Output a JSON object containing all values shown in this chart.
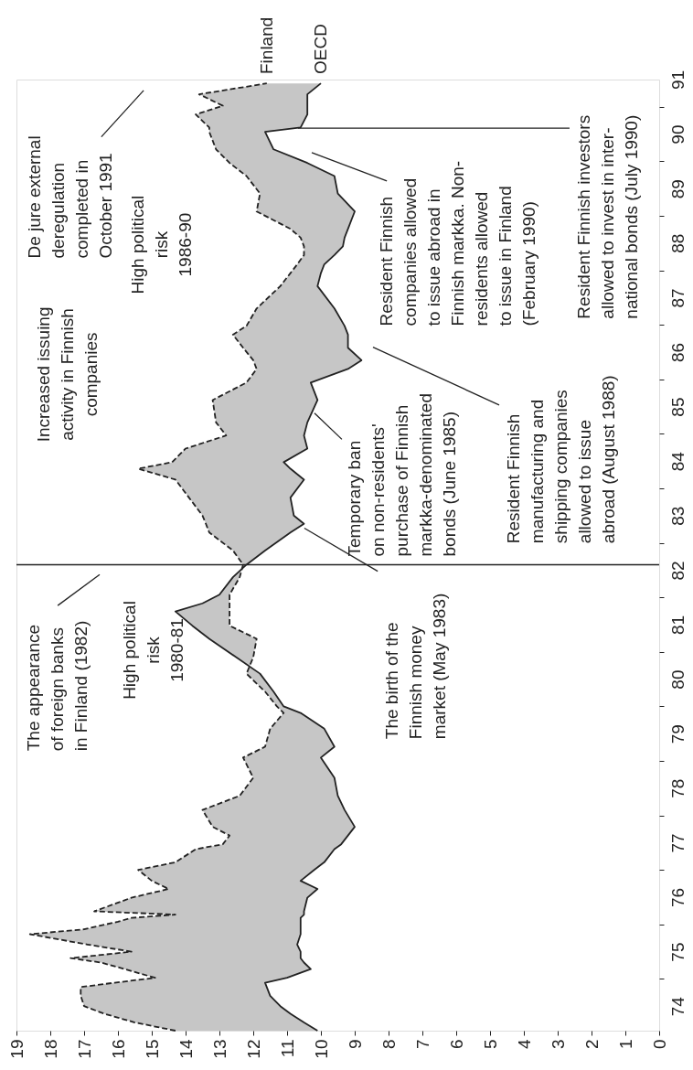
{
  "chart_data": {
    "type": "line",
    "orientation": "horizontal",
    "x": [
      74.05,
      74.2,
      74.36,
      74.5,
      74.69,
      74.85,
      74.93,
      75.02,
      75.18,
      75.3,
      75.38,
      75.5,
      75.63,
      75.82,
      75.91,
      76.05,
      76.12,
      76.18,
      76.24,
      76.49,
      76.65,
      76.8,
      77.0,
      77.14,
      77.38,
      77.47,
      77.63,
      77.79,
      78.1,
      78.36,
      78.69,
      79.06,
      79.26,
      79.59,
      79.88,
      80.0,
      80.27,
      80.6,
      80.9,
      81.24,
      81.48,
      81.74,
      81.89,
      82.05,
      82.37,
      82.6,
      82.86,
      83.19,
      83.35,
      83.5,
      83.83,
      84.16,
      84.36,
      84.48,
      84.73,
      84.97,
      85.21,
      85.62,
      85.94,
      86.19,
      86.35,
      86.58,
      86.82,
      86.98,
      87.3,
      87.71,
      87.95,
      88.11,
      88.28,
      88.44,
      88.6,
      88.76,
      88.92,
      89.08,
      89.41,
      89.73,
      89.97,
      90.22,
      90.54,
      90.62,
      90.86,
      91.02,
      91.23,
      91.43
    ],
    "series": [
      {
        "name": "Finland",
        "color": "#222222",
        "line_style": "dashed",
        "values": [
          14.3,
          15.5,
          16.4,
          17.0,
          17.1,
          17.1,
          16.1,
          14.9,
          15.8,
          16.5,
          17.4,
          15.6,
          16.9,
          18.6,
          17.0,
          16.0,
          15.6,
          14.3,
          16.7,
          15.6,
          14.5,
          15.0,
          15.4,
          14.3,
          13.7,
          12.9,
          12.7,
          13.2,
          13.5,
          12.4,
          12.0,
          12.3,
          11.65,
          11.5,
          11.1,
          11.3,
          11.65,
          12.2,
          12.0,
          11.9,
          12.7,
          12.7,
          12.7,
          12.7,
          12.4,
          12.3,
          12.6,
          13.3,
          13.4,
          13.5,
          13.9,
          14.3,
          15.4,
          14.4,
          14.0,
          12.8,
          13.1,
          13.2,
          12.2,
          11.9,
          12.0,
          12.3,
          12.6,
          12.2,
          11.9,
          11.2,
          10.9,
          10.7,
          10.5,
          10.5,
          10.6,
          10.9,
          11.4,
          11.9,
          11.8,
          12.2,
          12.7,
          13.1,
          13.3,
          13.3,
          13.7,
          12.9,
          13.6,
          11.6
        ],
        "upper": [
          14.3,
          15.5,
          16.4,
          17.0,
          17.1,
          17.1,
          16.1,
          14.9,
          15.8,
          16.5,
          17.4,
          15.6,
          16.9,
          18.6,
          17.0,
          16.0,
          15.6,
          14.3,
          16.7,
          15.6,
          14.5,
          15.0,
          15.4,
          14.3,
          13.7,
          12.9,
          12.7,
          13.2,
          13.5,
          12.4,
          12.0,
          12.3,
          11.65,
          11.5,
          11.1,
          11.3,
          11.65,
          12.2,
          12.0,
          11.9,
          12.7,
          12.7,
          12.7,
          12.7,
          12.4,
          12.3,
          12.6,
          13.3,
          13.4,
          13.5,
          13.9,
          14.3,
          15.4,
          14.4,
          14.0,
          12.8,
          13.1,
          13.2,
          12.2,
          11.9,
          12.0,
          12.3,
          12.6,
          12.2,
          11.9,
          11.2,
          10.9,
          10.7,
          10.5,
          10.5,
          10.6,
          10.9,
          11.4,
          11.9,
          11.8,
          12.2,
          12.7,
          13.1,
          13.3,
          13.3,
          13.7,
          12.9,
          13.6,
          11.6
        ],
        "lower": [
          10.1,
          10.5,
          10.9,
          11.2,
          11.5,
          11.6,
          11.65,
          11.0,
          10.3,
          10.5,
          10.6,
          10.6,
          10.7,
          10.6,
          10.6,
          10.6,
          10.6,
          10.5,
          10.5,
          10.4,
          10.1,
          10.6,
          10.2,
          9.9,
          9.6,
          9.4,
          9.2,
          9.0,
          9.3,
          9.5,
          9.6,
          10.0,
          9.6,
          9.9,
          10.6,
          11.1,
          11.4,
          11.8,
          12.5,
          13.3,
          13.8,
          14.3,
          13.5,
          13.0,
          12.6,
          12.2,
          11.65,
          10.9,
          10.5,
          10.8,
          10.9,
          10.5,
          10.9,
          11.1,
          10.4,
          10.5,
          10.4,
          10.1,
          10.3,
          9.2,
          8.8,
          9.2,
          9.2,
          9.3,
          9.6,
          10.1,
          10.0,
          9.9,
          9.6,
          9.35,
          9.3,
          9.2,
          9.1,
          9.0,
          9.5,
          9.6,
          10.4,
          11.4,
          11.65,
          10.6,
          10.4,
          10.4,
          10.4,
          10.0
        ]
      },
      {
        "name": "OECD",
        "color": "#222222",
        "line_style": "solid",
        "values": [
          10.1,
          10.5,
          10.9,
          11.2,
          11.5,
          11.6,
          11.65,
          11.0,
          10.3,
          10.5,
          10.6,
          10.6,
          10.7,
          10.6,
          10.6,
          10.6,
          10.6,
          10.5,
          10.5,
          10.4,
          10.1,
          10.6,
          10.2,
          9.9,
          9.6,
          9.4,
          9.2,
          9.0,
          9.3,
          9.5,
          9.6,
          10.0,
          9.6,
          9.9,
          10.6,
          11.1,
          11.4,
          11.8,
          12.5,
          13.3,
          13.8,
          14.3,
          13.5,
          13.0,
          12.6,
          12.2,
          11.65,
          10.9,
          10.5,
          10.8,
          10.9,
          10.5,
          10.9,
          11.1,
          10.4,
          10.5,
          10.4,
          10.1,
          10.3,
          9.2,
          8.8,
          9.2,
          9.2,
          9.3,
          9.6,
          10.1,
          10.0,
          9.9,
          9.6,
          9.35,
          9.3,
          9.2,
          9.1,
          9.0,
          9.5,
          9.6,
          10.4,
          11.4,
          11.65,
          10.6,
          10.4,
          10.4,
          10.4,
          10.0
        ]
      }
    ],
    "xlim": [
      19,
      0
    ],
    "xticks": [
      0,
      1,
      2,
      3,
      4,
      5,
      6,
      7,
      8,
      9,
      10,
      11,
      12,
      13,
      14,
      15,
      16,
      17,
      18,
      19
    ],
    "ylim": [
      74.05,
      91.5
    ],
    "yticks": [
      {
        "value": 74.5,
        "label": "74"
      },
      {
        "value": 75.5,
        "label": "75"
      },
      {
        "value": 76.5,
        "label": "76"
      },
      {
        "value": 77.5,
        "label": "77"
      },
      {
        "value": 78.5,
        "label": "78"
      },
      {
        "value": 79.5,
        "label": "79"
      },
      {
        "value": 80.5,
        "label": "80"
      },
      {
        "value": 81.5,
        "label": "81"
      },
      {
        "value": 82.5,
        "label": "82"
      },
      {
        "value": 83.5,
        "label": "83"
      },
      {
        "value": 84.5,
        "label": "84"
      },
      {
        "value": 85.5,
        "label": "85"
      },
      {
        "value": 86.5,
        "label": "86"
      },
      {
        "value": 87.5,
        "label": "87"
      },
      {
        "value": 88.5,
        "label": "88"
      },
      {
        "value": 89.5,
        "label": "89"
      },
      {
        "value": 90.5,
        "label": "90"
      },
      {
        "value": 91.5,
        "label": "91"
      },
      {
        "value": 75,
        "label": null
      },
      {
        "value": 76,
        "label": null
      },
      {
        "value": 77,
        "label": null
      },
      {
        "value": 78,
        "label": null
      },
      {
        "value": 79,
        "label": null
      },
      {
        "value": 80,
        "label": null
      },
      {
        "value": 81,
        "label": null
      },
      {
        "value": 82,
        "label": null
      },
      {
        "value": 83,
        "label": null
      },
      {
        "value": 84,
        "label": null
      },
      {
        "value": 85,
        "label": null
      },
      {
        "value": 86,
        "label": null
      },
      {
        "value": 87,
        "label": null
      },
      {
        "value": 88,
        "label": null
      },
      {
        "value": 89,
        "label": null
      },
      {
        "value": 90,
        "label": null
      },
      {
        "value": 91,
        "label": null
      }
    ],
    "ref_lines": [
      {
        "axis": "y",
        "value": 82.6,
        "color": "#222222"
      }
    ],
    "grid": false,
    "legend": false,
    "annotations": [
      "The appearance\nof foreign banks\nin Finland (1982)",
      "High political\nrisk\n1980-81",
      {
        "text": "The birth of the\nFinnish money\nmarket (May 1983)",
        "x": 10.49,
        "y": 83.27
      },
      "Increased issuing\nactivity in Finnish\ncompanies",
      "High political\nrisk\n1986-90",
      "De jure external\nderegulation\ncompleted in\nOctober 1991",
      {
        "text": "Temporary ban\non non-residents'\npurchase of Finnish\nmarkka-denominated\nbonds (June 1985)",
        "x": 10.19,
        "y": 85.38
      },
      "Resident Finnish\nmanufacturing and\nshipping companies\nallowed to issue\nabroad (August 1988)",
      "Resident Finnish\ncompanies allowed\nto issue abroad in\nFinnish markka. Non-\nresidents allowed\nto issue in Finland\n(February 1990)",
      {
        "text": "Resident Finnish investors\nallowed to invest in inter-\nnational bonds (July 1990)",
        "x": 10.68,
        "y": 90.61
      }
    ]
  }
}
